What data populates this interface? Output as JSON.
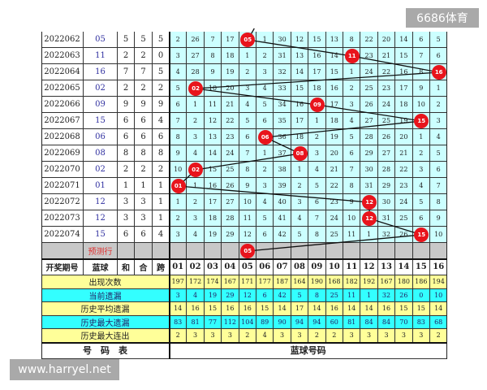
{
  "watermarks": {
    "top": "6686体育",
    "bottom": "www.harryel.net"
  },
  "colors": {
    "ball": "#e8141c",
    "grid": "#ccffff",
    "stat_yellow": "#ffff99",
    "stat_cyan": "#33ffff"
  },
  "rows": [
    {
      "period": "2022062",
      "blue": "05",
      "he": "5",
      "hewei": "5",
      "kua": "5",
      "hit": 5,
      "miss": [
        2,
        26,
        7,
        17,
        "05",
        1,
        30,
        12,
        15,
        13,
        8,
        22,
        20,
        14,
        6,
        5
      ]
    },
    {
      "period": "2022063",
      "blue": "11",
      "he": "2",
      "hewei": "2",
      "kua": "0",
      "hit": 11,
      "miss": [
        3,
        27,
        8,
        18,
        1,
        2,
        31,
        13,
        16,
        14,
        "11",
        23,
        21,
        15,
        7,
        6
      ]
    },
    {
      "period": "2022064",
      "blue": "16",
      "he": "7",
      "hewei": "7",
      "kua": "5",
      "hit": 16,
      "miss": [
        4,
        28,
        9,
        19,
        2,
        3,
        32,
        14,
        17,
        15,
        1,
        24,
        22,
        16,
        8,
        "16"
      ]
    },
    {
      "period": "2022065",
      "blue": "02",
      "he": "2",
      "hewei": "2",
      "kua": "2",
      "hit": 2,
      "miss": [
        5,
        "02",
        10,
        20,
        3,
        4,
        33,
        15,
        18,
        16,
        2,
        25,
        23,
        17,
        9,
        1
      ]
    },
    {
      "period": "2022066",
      "blue": "09",
      "he": "9",
      "hewei": "9",
      "kua": "9",
      "hit": 9,
      "miss": [
        6,
        1,
        11,
        21,
        4,
        5,
        34,
        16,
        "09",
        17,
        3,
        26,
        24,
        18,
        10,
        2
      ]
    },
    {
      "period": "2022067",
      "blue": "15",
      "he": "6",
      "hewei": "6",
      "kua": "4",
      "hit": 15,
      "miss": [
        7,
        2,
        12,
        22,
        5,
        6,
        35,
        17,
        1,
        18,
        4,
        27,
        25,
        19,
        "15",
        3
      ]
    },
    {
      "period": "2022068",
      "blue": "06",
      "he": "6",
      "hewei": "6",
      "kua": "6",
      "hit": 6,
      "miss": [
        8,
        3,
        13,
        23,
        6,
        "06",
        36,
        18,
        2,
        19,
        5,
        28,
        26,
        20,
        1,
        4
      ]
    },
    {
      "period": "2022069",
      "blue": "08",
      "he": "8",
      "hewei": "8",
      "kua": "8",
      "hit": 8,
      "miss": [
        9,
        4,
        14,
        24,
        7,
        1,
        37,
        "08",
        3,
        20,
        6,
        29,
        27,
        21,
        2,
        5
      ]
    },
    {
      "period": "2022070",
      "blue": "02",
      "he": "2",
      "hewei": "2",
      "kua": "2",
      "hit": 2,
      "miss": [
        10,
        "02",
        15,
        25,
        8,
        2,
        38,
        1,
        4,
        21,
        7,
        30,
        28,
        22,
        3,
        6
      ]
    },
    {
      "period": "2022071",
      "blue": "01",
      "he": "1",
      "hewei": "1",
      "kua": "1",
      "hit": 1,
      "miss": [
        "01",
        1,
        16,
        26,
        9,
        3,
        39,
        2,
        5,
        22,
        8,
        31,
        29,
        23,
        4,
        7
      ]
    },
    {
      "period": "2022072",
      "blue": "12",
      "he": "3",
      "hewei": "3",
      "kua": "1",
      "hit": 12,
      "miss": [
        1,
        2,
        17,
        27,
        10,
        4,
        40,
        3,
        6,
        23,
        9,
        "12",
        30,
        24,
        5,
        8
      ]
    },
    {
      "period": "2022073",
      "blue": "12",
      "he": "3",
      "hewei": "3",
      "kua": "1",
      "hit": 12,
      "miss": [
        2,
        3,
        18,
        28,
        11,
        5,
        41,
        4,
        7,
        24,
        10,
        "12",
        31,
        25,
        6,
        9
      ]
    },
    {
      "period": "2022074",
      "blue": "15",
      "he": "6",
      "hewei": "6",
      "kua": "4",
      "hit": 15,
      "miss": [
        3,
        4,
        19,
        29,
        12,
        6,
        42,
        5,
        8,
        25,
        11,
        1,
        32,
        26,
        "15",
        10
      ]
    }
  ],
  "forecast": {
    "label": "预测行",
    "hit": 5,
    "ball": "05"
  },
  "header": {
    "period": "开奖期号",
    "blue": "蓝球",
    "he": "和",
    "hewei": "合",
    "kua": "跨",
    "numbers": [
      "01",
      "02",
      "03",
      "04",
      "05",
      "06",
      "07",
      "08",
      "09",
      "10",
      "11",
      "12",
      "13",
      "14",
      "15",
      "16"
    ]
  },
  "stats": [
    {
      "label": "出现次数",
      "style": "yel",
      "values": [
        197,
        172,
        174,
        167,
        171,
        177,
        187,
        164,
        190,
        168,
        182,
        192,
        167,
        180,
        186,
        194
      ]
    },
    {
      "label": "当前遗漏",
      "style": "cyan",
      "values": [
        3,
        4,
        19,
        29,
        12,
        6,
        42,
        5,
        8,
        25,
        11,
        1,
        32,
        26,
        0,
        10
      ]
    },
    {
      "label": "历史平均遗漏",
      "style": "yel",
      "values": [
        14,
        16,
        15,
        16,
        16,
        15,
        14,
        17,
        14,
        16,
        14,
        14,
        16,
        15,
        15,
        14
      ]
    },
    {
      "label": "历史最大遗漏",
      "style": "cyan",
      "values": [
        83,
        81,
        77,
        112,
        104,
        89,
        90,
        94,
        94,
        60,
        81,
        84,
        84,
        70,
        83,
        68
      ]
    },
    {
      "label": "历史最大连出",
      "style": "yel",
      "values": [
        2,
        3,
        3,
        3,
        2,
        4,
        3,
        3,
        2,
        2,
        3,
        3,
        3,
        3,
        3,
        2
      ]
    }
  ],
  "footer": {
    "left": "号　码　表",
    "right": "蓝球号码"
  }
}
